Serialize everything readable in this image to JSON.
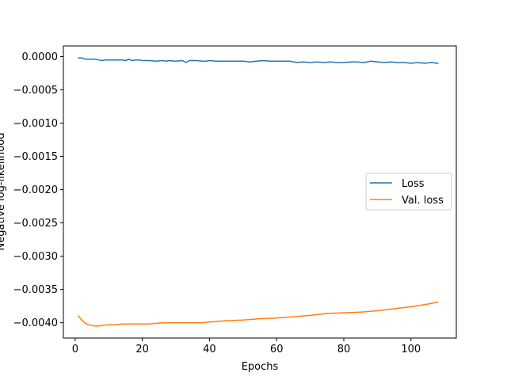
{
  "chart_data": {
    "type": "line",
    "title": "",
    "xlabel": "Epochs",
    "ylabel": "Negative log-likelihood",
    "xlim": [
      -3.5,
      113.5
    ],
    "ylim": [
      -0.00423,
      0.00016
    ],
    "xticks": [
      0,
      20,
      40,
      60,
      80,
      100
    ],
    "xtick_labels": [
      "0",
      "20",
      "40",
      "60",
      "80",
      "100"
    ],
    "yticks": [
      0,
      -0.0005,
      -0.001,
      -0.0015,
      -0.002,
      -0.0025,
      -0.003,
      -0.0035,
      -0.004
    ],
    "ytick_labels": [
      "0.0000",
      "−0.0005",
      "−0.0010",
      "−0.0015",
      "−0.0020",
      "−0.0025",
      "−0.0030",
      "−0.0035",
      "−0.0040"
    ],
    "grid": false,
    "legend": {
      "placement": "center-right"
    },
    "series": [
      {
        "name": "Loss",
        "color": "#1f77b4",
        "x": [
          1,
          2,
          3,
          4,
          5,
          6,
          7,
          8,
          9,
          10,
          12,
          14,
          15,
          16,
          17,
          18,
          19,
          20,
          22,
          24,
          26,
          27,
          28,
          30,
          32,
          33,
          34,
          36,
          38,
          39,
          40,
          42,
          44,
          46,
          48,
          50,
          52,
          54,
          56,
          58,
          60,
          62,
          64,
          66,
          68,
          70,
          72,
          74,
          76,
          78,
          80,
          82,
          84,
          86,
          88,
          90,
          92,
          94,
          96,
          98,
          100,
          102,
          104,
          106,
          108
        ],
        "y": [
          -2e-05,
          -2e-05,
          -4e-05,
          -4e-05,
          -4e-05,
          -4e-05,
          -5e-05,
          -6e-05,
          -5e-05,
          -5e-05,
          -5e-05,
          -5e-05,
          -6e-05,
          -4e-05,
          -6e-05,
          -5e-05,
          -5e-05,
          -6e-05,
          -6e-05,
          -7e-05,
          -6e-05,
          -7e-05,
          -6e-05,
          -7e-05,
          -6e-05,
          -9e-05,
          -6e-05,
          -6e-05,
          -7e-05,
          -7e-05,
          -6e-05,
          -7e-05,
          -7e-05,
          -7e-05,
          -7e-05,
          -7e-05,
          -8e-05,
          -7e-05,
          -6e-05,
          -7e-05,
          -7e-05,
          -7e-05,
          -7e-05,
          -9e-05,
          -8e-05,
          -9e-05,
          -8e-05,
          -9e-05,
          -8e-05,
          -9e-05,
          -9e-05,
          -8e-05,
          -8e-05,
          -9e-05,
          -7e-05,
          -8e-05,
          -9e-05,
          -8e-05,
          -9e-05,
          -9e-05,
          -0.0001,
          -9e-05,
          -0.0001,
          -9e-05,
          -0.0001
        ]
      },
      {
        "name": "Val. loss",
        "color": "#ff7f0e",
        "x": [
          1,
          2,
          3,
          4,
          5,
          6,
          7,
          8,
          10,
          12,
          14,
          16,
          18,
          20,
          22,
          24,
          26,
          28,
          30,
          32,
          34,
          36,
          38,
          40,
          45,
          50,
          55,
          60,
          65,
          70,
          75,
          80,
          85,
          90,
          95,
          100,
          105,
          108
        ],
        "y": [
          -0.0039,
          -0.00396,
          -0.00401,
          -0.00403,
          -0.00404,
          -0.00405,
          -0.00405,
          -0.00404,
          -0.00403,
          -0.00403,
          -0.00402,
          -0.00402,
          -0.00402,
          -0.00402,
          -0.00402,
          -0.00401,
          -0.004,
          -0.004,
          -0.004,
          -0.004,
          -0.004,
          -0.004,
          -0.004,
          -0.00399,
          -0.00397,
          -0.00396,
          -0.00394,
          -0.00393,
          -0.00391,
          -0.00389,
          -0.00386,
          -0.00385,
          -0.00384,
          -0.00382,
          -0.00379,
          -0.00376,
          -0.00372,
          -0.00369
        ]
      }
    ]
  }
}
